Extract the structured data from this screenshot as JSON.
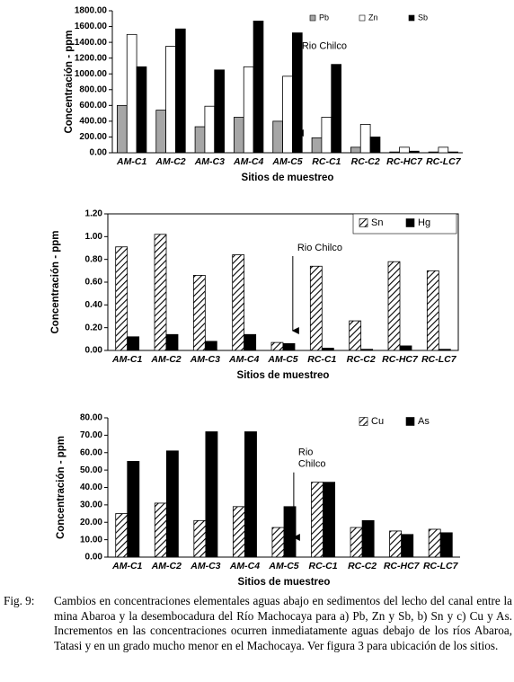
{
  "chart_data": [
    {
      "type": "bar",
      "categories": [
        "AM-C1",
        "AM-C2",
        "AM-C3",
        "AM-C4",
        "AM-C5",
        "RC-C1",
        "RC-C2",
        "RC-HC7",
        "RC-LC7"
      ],
      "series": [
        {
          "name": "Pb",
          "color": "#a6a6a6",
          "values": [
            600,
            540,
            330,
            450,
            400,
            190,
            70,
            10,
            10
          ]
        },
        {
          "name": "Zn",
          "color": "#ffffff",
          "values": [
            1500,
            1350,
            590,
            1090,
            970,
            450,
            360,
            70,
            70
          ]
        },
        {
          "name": "Sb",
          "color": "#000000",
          "values": [
            1090,
            1570,
            1050,
            1670,
            1520,
            1120,
            200,
            20,
            10
          ]
        }
      ],
      "ylim": [
        0,
        1800
      ],
      "yticks": [
        {
          "value": 0,
          "label": "0.00"
        },
        {
          "value": 200,
          "label": "200.00"
        },
        {
          "value": 400,
          "label": "400.00"
        },
        {
          "value": 600,
          "label": "600.00"
        },
        {
          "value": 800,
          "label": "800.00"
        },
        {
          "value": 1000,
          "label": "1000.00"
        },
        {
          "value": 1200,
          "label": "1200.00"
        },
        {
          "value": 1400,
          "label": "1400.00"
        },
        {
          "value": 1600,
          "label": "1600.00"
        },
        {
          "value": 1800,
          "label": "1800.00"
        }
      ],
      "xlabel": "Sitios de muestreo",
      "ylabel": "Concentración - ppm",
      "annotation": [
        "Rio Chilco"
      ]
    },
    {
      "type": "bar",
      "categories": [
        "AM-C1",
        "AM-C2",
        "AM-C3",
        "AM-C4",
        "AM-C5",
        "RC-C1",
        "RC-C2",
        "RC-HC7",
        "RC-LC7"
      ],
      "series": [
        {
          "name": "Sn",
          "color": "hatch",
          "values": [
            0.91,
            1.02,
            0.66,
            0.84,
            0.07,
            0.74,
            0.26,
            0.78,
            0.7
          ]
        },
        {
          "name": "Hg",
          "color": "#000000",
          "values": [
            0.12,
            0.14,
            0.08,
            0.14,
            0.06,
            0.02,
            0.01,
            0.04,
            0.01
          ]
        }
      ],
      "ylim": [
        0,
        1.2
      ],
      "yticks": [
        {
          "value": 0,
          "label": "0.00"
        },
        {
          "value": 0.2,
          "label": "0.20"
        },
        {
          "value": 0.4,
          "label": "0.40"
        },
        {
          "value": 0.6,
          "label": "0.60"
        },
        {
          "value": 0.8,
          "label": "0.80"
        },
        {
          "value": 1,
          "label": "1.00"
        },
        {
          "value": 1.2,
          "label": "1.20"
        }
      ],
      "xlabel": "Sitios de muestreo",
      "ylabel": "Concentración - ppm",
      "annotation": [
        "Rio Chilco"
      ]
    },
    {
      "type": "bar",
      "categories": [
        "AM-C1",
        "AM-C2",
        "AM-C3",
        "AM-C4",
        "AM-C5",
        "RC-C1",
        "RC-C2",
        "RC-HC7",
        "RC-LC7"
      ],
      "series": [
        {
          "name": "Cu",
          "color": "hatch",
          "values": [
            25,
            31,
            21,
            29,
            17,
            43,
            17,
            15,
            16
          ]
        },
        {
          "name": "As",
          "color": "#000000",
          "values": [
            55,
            61,
            72,
            72,
            29,
            43,
            21,
            13,
            14
          ]
        }
      ],
      "ylim": [
        0,
        80
      ],
      "yticks": [
        {
          "value": 0,
          "label": "0.00"
        },
        {
          "value": 10,
          "label": "10.00"
        },
        {
          "value": 20,
          "label": "20.00"
        },
        {
          "value": 30,
          "label": "30.00"
        },
        {
          "value": 40,
          "label": "40.00"
        },
        {
          "value": 50,
          "label": "50.00"
        },
        {
          "value": 60,
          "label": "60.00"
        },
        {
          "value": 70,
          "label": "70.00"
        },
        {
          "value": 80,
          "label": "80.00"
        }
      ],
      "xlabel": "Sitios de muestreo",
      "ylabel": "Concentración - ppm",
      "annotation": [
        "Rio",
        "Chilco"
      ]
    }
  ],
  "caption": {
    "label": "Fig. 9:",
    "text": "Cambios en concentraciones elementales aguas abajo en sedimentos del lecho del canal entre la mina Abaroa y la desembocadura del Río Machocaya para a) Pb, Zn y Sb, b) Sn y c) Cu y As. Incrementos en las concentraciones ocurren inmediatamente aguas debajo de los ríos Abaroa, Tatasi y en un grado mucho menor en el Machocaya. Ver figura 3 para ubicación de los sitios."
  }
}
